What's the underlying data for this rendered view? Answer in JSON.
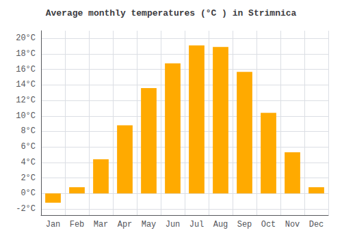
{
  "chart_data": {
    "type": "bar",
    "title": "Average monthly temperatures (°C ) in Strimnica",
    "categories": [
      "Jan",
      "Feb",
      "Mar",
      "Apr",
      "May",
      "Jun",
      "Jul",
      "Aug",
      "Sep",
      "Oct",
      "Nov",
      "Dec"
    ],
    "values": [
      -1.2,
      0.8,
      4.4,
      8.8,
      13.6,
      16.8,
      19.1,
      18.9,
      15.7,
      10.4,
      5.3,
      0.8
    ],
    "color": "#FFAA00",
    "ylim": [
      -2.8,
      21.0
    ],
    "yticks": [
      {
        "value": -2,
        "label": "-2°C"
      },
      {
        "value": 0,
        "label": "0°C"
      },
      {
        "value": 2,
        "label": "2°C"
      },
      {
        "value": 4,
        "label": "4°C"
      },
      {
        "value": 6,
        "label": "6°C"
      },
      {
        "value": 8,
        "label": "8°C"
      },
      {
        "value": 10,
        "label": "10°C"
      },
      {
        "value": 12,
        "label": "12°C"
      },
      {
        "value": 14,
        "label": "14°C"
      },
      {
        "value": 16,
        "label": "16°C"
      },
      {
        "value": 18,
        "label": "18°C"
      },
      {
        "value": 20,
        "label": "20°C"
      }
    ],
    "grid": true
  }
}
